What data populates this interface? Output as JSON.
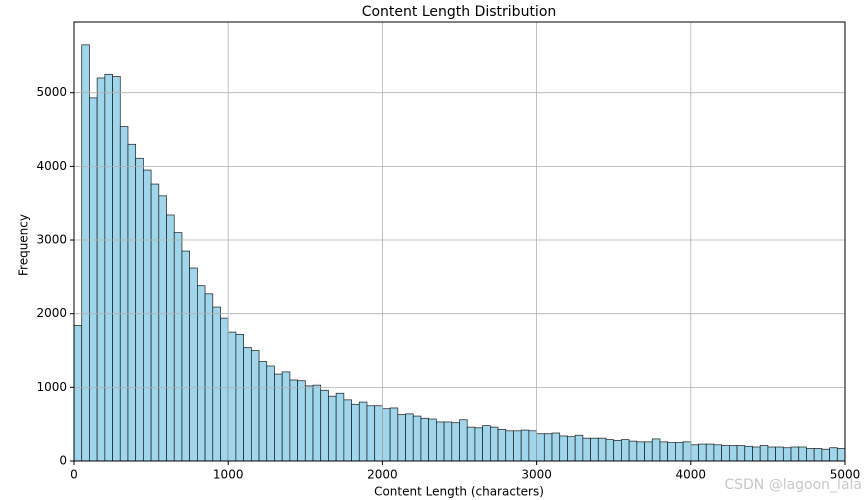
{
  "chart_data": {
    "type": "histogram",
    "title": "Content Length Distribution",
    "x_label": "Content Length (characters)",
    "y_label": "Frequency",
    "bins": [
      0,
      50,
      100,
      150,
      200,
      250,
      300,
      350,
      400,
      450,
      500,
      550,
      600,
      650,
      700,
      750,
      800,
      850,
      900,
      950,
      1000,
      1050,
      1100,
      1150,
      1200,
      1250,
      1300,
      1350,
      1400,
      1450,
      1500,
      1550,
      1600,
      1650,
      1700,
      1750,
      1800,
      1850,
      1900,
      1950,
      2000,
      2050,
      2100,
      2150,
      2200,
      2250,
      2300,
      2350,
      2400,
      2450,
      2500,
      2550,
      2600,
      2650,
      2700,
      2750,
      2800,
      2850,
      2900,
      2950,
      3000,
      3050,
      3100,
      3150,
      3200,
      3250,
      3300,
      3350,
      3400,
      3450,
      3500,
      3550,
      3600,
      3650,
      3700,
      3750,
      3800,
      3850,
      3900,
      3950,
      4000,
      4050,
      4100,
      4150,
      4200,
      4250,
      4300,
      4350,
      4400,
      4450,
      4500,
      4550,
      4600,
      4650,
      4700,
      4750,
      4800,
      4850,
      4900,
      4950,
      5000
    ],
    "values": [
      1840,
      5650,
      4930,
      5200,
      5250,
      5220,
      4540,
      4300,
      4110,
      3950,
      3760,
      3600,
      3340,
      3100,
      2850,
      2620,
      2380,
      2270,
      2090,
      1940,
      1750,
      1720,
      1540,
      1500,
      1350,
      1290,
      1180,
      1210,
      1100,
      1090,
      1020,
      1030,
      960,
      880,
      920,
      830,
      770,
      800,
      750,
      750,
      710,
      720,
      630,
      640,
      610,
      580,
      570,
      530,
      530,
      520,
      560,
      460,
      450,
      480,
      460,
      430,
      410,
      410,
      420,
      410,
      370,
      370,
      380,
      340,
      330,
      350,
      310,
      310,
      310,
      290,
      280,
      290,
      270,
      260,
      260,
      300,
      260,
      250,
      250,
      260,
      220,
      230,
      230,
      220,
      210,
      210,
      210,
      200,
      190,
      210,
      190,
      190,
      180,
      190,
      190,
      170,
      170,
      160,
      180,
      170
    ],
    "color": "#9fd6eb",
    "edgecolor": "#1a1a1a",
    "xlim": [
      0,
      5000
    ],
    "ylim": [
      0,
      5960
    ],
    "xticks": [
      0,
      1000,
      2000,
      3000,
      4000,
      5000
    ],
    "yticks": [
      0,
      1000,
      2000,
      3000,
      4000,
      5000
    ],
    "grid": true,
    "watermark": "CSDN @lagoon_lala"
  }
}
